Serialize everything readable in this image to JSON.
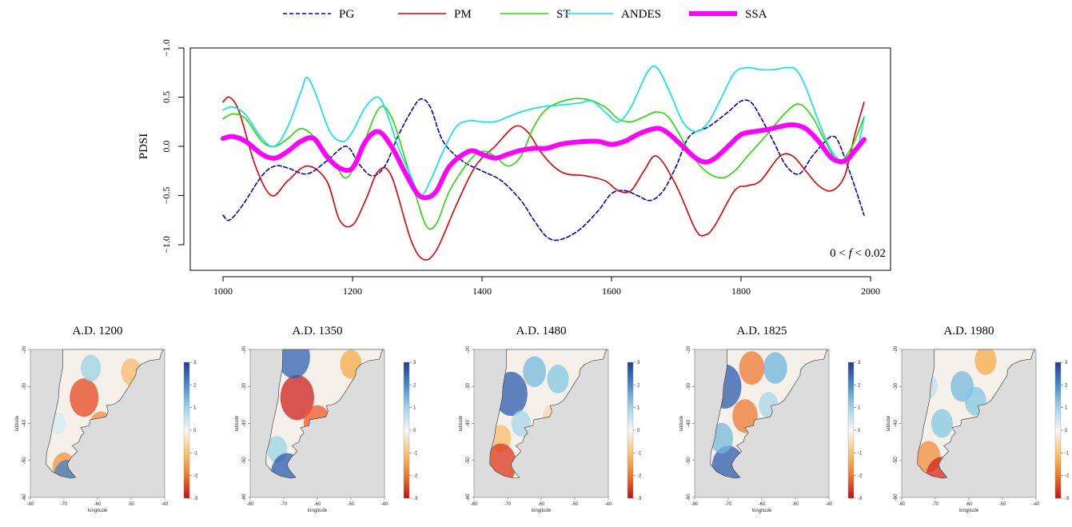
{
  "chart_data": [
    {
      "type": "line",
      "title": "",
      "xlabel": "",
      "ylabel": "PDSI",
      "xlim": [
        1000,
        2000
      ],
      "ylim": [
        -1.0,
        1.0
      ],
      "y_inverted": true,
      "x_ticks": [
        1000,
        1200,
        1400,
        1600,
        1800,
        2000
      ],
      "y_ticks": [
        -1.0,
        -0.5,
        0.0,
        0.5,
        1.0
      ],
      "y_tick_labels": [
        "0.5",
        "0.0",
        "−0.5",
        "−1.0"
      ],
      "y_top_label": "−1.0",
      "annotation": {
        "pre": "0 < ",
        "var": "f",
        "post": " < 0.02"
      },
      "legend": "top",
      "series": [
        {
          "name": "PG",
          "color": "#0000cc",
          "style": "dashed",
          "width": 1.6,
          "x": [
            1000,
            1010,
            1030,
            1060,
            1080,
            1100,
            1130,
            1160,
            1190,
            1210,
            1230,
            1250,
            1270,
            1290,
            1305,
            1320,
            1340,
            1370,
            1400,
            1430,
            1460,
            1480,
            1500,
            1520,
            1550,
            1580,
            1600,
            1620,
            1640,
            1660,
            1680,
            1700,
            1720,
            1750,
            1780,
            1800,
            1815,
            1830,
            1850,
            1870,
            1890,
            1910,
            1930,
            1940,
            1950,
            1970,
            1990
          ],
          "y": [
            0.7,
            0.75,
            0.6,
            0.3,
            0.2,
            0.22,
            0.28,
            0.15,
            0.0,
            0.18,
            0.3,
            0.2,
            -0.1,
            -0.35,
            -0.48,
            -0.4,
            -0.05,
            0.15,
            0.25,
            0.35,
            0.55,
            0.75,
            0.92,
            0.95,
            0.85,
            0.65,
            0.48,
            0.45,
            0.5,
            0.55,
            0.45,
            0.2,
            -0.1,
            -0.2,
            -0.35,
            -0.46,
            -0.45,
            -0.3,
            -0.05,
            0.2,
            0.28,
            0.1,
            -0.05,
            -0.1,
            -0.05,
            0.3,
            0.7
          ]
        },
        {
          "name": "PM",
          "color": "#e00000",
          "style": "solid",
          "width": 1.6,
          "x": [
            1000,
            1010,
            1025,
            1050,
            1075,
            1100,
            1130,
            1160,
            1180,
            1200,
            1220,
            1240,
            1260,
            1290,
            1310,
            1330,
            1360,
            1390,
            1420,
            1450,
            1470,
            1490,
            1510,
            1530,
            1560,
            1590,
            1610,
            1630,
            1650,
            1670,
            1700,
            1730,
            1745,
            1760,
            1790,
            1810,
            1830,
            1860,
            1880,
            1900,
            1920,
            1940,
            1960,
            1975,
            1990
          ],
          "y": [
            -0.45,
            -0.5,
            -0.35,
            0.2,
            0.5,
            0.35,
            0.2,
            0.35,
            0.75,
            0.8,
            0.55,
            0.25,
            0.3,
            0.95,
            1.15,
            1.05,
            0.6,
            0.2,
            0.0,
            -0.2,
            -0.15,
            0.05,
            0.2,
            0.28,
            0.3,
            0.35,
            0.45,
            0.45,
            0.25,
            0.1,
            0.4,
            0.85,
            0.9,
            0.8,
            0.45,
            0.4,
            0.35,
            0.1,
            0.1,
            0.25,
            0.4,
            0.45,
            0.3,
            -0.1,
            -0.45
          ]
        },
        {
          "name": "ST",
          "color": "#22dd00",
          "style": "solid",
          "width": 1.6,
          "x": [
            1000,
            1015,
            1035,
            1060,
            1080,
            1100,
            1120,
            1140,
            1170,
            1190,
            1210,
            1240,
            1260,
            1280,
            1300,
            1315,
            1330,
            1350,
            1380,
            1400,
            1420,
            1440,
            1460,
            1480,
            1500,
            1530,
            1560,
            1590,
            1610,
            1630,
            1650,
            1670,
            1690,
            1720,
            1745,
            1770,
            1790,
            1810,
            1840,
            1870,
            1890,
            1910,
            1930,
            1950,
            1970,
            1990
          ],
          "y": [
            -0.28,
            -0.33,
            -0.28,
            -0.05,
            0.0,
            -0.08,
            -0.18,
            -0.1,
            0.15,
            0.32,
            0.1,
            -0.38,
            -0.3,
            0.1,
            0.55,
            0.82,
            0.78,
            0.45,
            0.15,
            0.05,
            0.1,
            0.2,
            0.1,
            -0.2,
            -0.38,
            -0.47,
            -0.48,
            -0.4,
            -0.28,
            -0.25,
            -0.3,
            -0.35,
            -0.28,
            0.05,
            0.25,
            0.32,
            0.25,
            0.1,
            -0.12,
            -0.35,
            -0.43,
            -0.3,
            -0.05,
            0.15,
            0.02,
            -0.3
          ]
        },
        {
          "name": "ANDES",
          "color": "#00e5ee",
          "style": "solid",
          "width": 1.6,
          "x": [
            1000,
            1015,
            1035,
            1060,
            1080,
            1100,
            1120,
            1130,
            1145,
            1165,
            1185,
            1200,
            1220,
            1240,
            1255,
            1270,
            1290,
            1305,
            1320,
            1340,
            1360,
            1380,
            1400,
            1420,
            1440,
            1460,
            1490,
            1520,
            1550,
            1570,
            1590,
            1610,
            1630,
            1655,
            1670,
            1690,
            1710,
            1730,
            1750,
            1770,
            1790,
            1810,
            1830,
            1850,
            1870,
            1885,
            1900,
            1920,
            1940,
            1960,
            1980,
            1990
          ],
          "y": [
            -0.37,
            -0.4,
            -0.32,
            -0.08,
            0.0,
            -0.2,
            -0.55,
            -0.7,
            -0.5,
            -0.15,
            -0.05,
            -0.15,
            -0.4,
            -0.5,
            -0.3,
            0.0,
            0.3,
            0.5,
            0.35,
            0.05,
            -0.2,
            -0.26,
            -0.25,
            -0.25,
            -0.3,
            -0.35,
            -0.4,
            -0.42,
            -0.44,
            -0.46,
            -0.35,
            -0.25,
            -0.4,
            -0.75,
            -0.8,
            -0.55,
            -0.25,
            -0.15,
            -0.25,
            -0.5,
            -0.75,
            -0.8,
            -0.78,
            -0.78,
            -0.8,
            -0.78,
            -0.6,
            -0.25,
            0.05,
            0.15,
            0.0,
            -0.3
          ]
        },
        {
          "name": "SSA",
          "color": "#ff00ff",
          "style": "solid",
          "width": 6,
          "x": [
            1000,
            1015,
            1035,
            1060,
            1080,
            1100,
            1120,
            1140,
            1160,
            1180,
            1200,
            1220,
            1240,
            1260,
            1280,
            1300,
            1315,
            1330,
            1350,
            1380,
            1400,
            1420,
            1440,
            1460,
            1480,
            1500,
            1520,
            1540,
            1560,
            1580,
            1600,
            1620,
            1640,
            1660,
            1675,
            1690,
            1710,
            1730,
            1745,
            1760,
            1780,
            1800,
            1820,
            1840,
            1860,
            1880,
            1900,
            1920,
            1940,
            1960,
            1975,
            1990
          ],
          "y": [
            -0.08,
            -0.1,
            -0.05,
            0.08,
            0.12,
            0.05,
            -0.05,
            -0.08,
            0.1,
            0.22,
            0.22,
            -0.05,
            -0.15,
            0.0,
            0.25,
            0.48,
            0.52,
            0.45,
            0.2,
            0.05,
            0.08,
            0.12,
            0.08,
            0.04,
            0.02,
            0.02,
            -0.02,
            -0.04,
            -0.05,
            -0.05,
            -0.02,
            -0.05,
            -0.12,
            -0.17,
            -0.18,
            -0.12,
            0.0,
            0.12,
            0.16,
            0.12,
            0.0,
            -0.12,
            -0.15,
            -0.17,
            -0.2,
            -0.22,
            -0.18,
            -0.05,
            0.12,
            0.15,
            0.05,
            -0.07
          ]
        }
      ]
    },
    {
      "type": "heatmap",
      "title": "A.D. 1200",
      "xlabel": "longitude",
      "ylabel": "latitude",
      "x_ticks": [
        -80,
        -70,
        -60,
        -50,
        -40
      ],
      "y_ticks": [
        -20,
        -30,
        -40,
        -50,
        -60
      ],
      "colorbar": {
        "min": -3,
        "max": 3,
        "ticks": [
          3,
          2,
          1,
          0,
          -1,
          -2,
          -3
        ]
      },
      "anomalies": [
        {
          "lon": -64,
          "lat": -33,
          "value": -2.0
        },
        {
          "lon": -59,
          "lat": -41,
          "value": -1.3
        },
        {
          "lon": -62,
          "lat": -25,
          "value": 0.8
        },
        {
          "lon": -50,
          "lat": -26,
          "value": -0.8
        },
        {
          "lon": -70,
          "lat": -52,
          "value": -1.2
        },
        {
          "lon": -69,
          "lat": -55,
          "value": 2.0
        },
        {
          "lon": -72,
          "lat": -40,
          "value": 0.3
        }
      ]
    },
    {
      "type": "heatmap",
      "title": "A.D. 1350",
      "xlabel": "longitude",
      "ylabel": "latitude",
      "x_ticks": [
        -80,
        -70,
        -60,
        -50,
        -40
      ],
      "y_ticks": [
        -20,
        -30,
        -40,
        -50,
        -60
      ],
      "colorbar": {
        "min": -3,
        "max": 3,
        "ticks": [
          3,
          2,
          1,
          0,
          -1,
          -2,
          -3
        ]
      },
      "anomalies": [
        {
          "lon": -66,
          "lat": -33,
          "value": -2.7
        },
        {
          "lon": -60,
          "lat": -40,
          "value": -1.8
        },
        {
          "lon": -67,
          "lat": -22,
          "value": 2.5
        },
        {
          "lon": -50,
          "lat": -24,
          "value": -1.0
        },
        {
          "lon": -72,
          "lat": -47,
          "value": 0.8
        },
        {
          "lon": -69,
          "lat": -54,
          "value": 2.6
        },
        {
          "lon": -64,
          "lat": -48,
          "value": -0.5
        }
      ]
    },
    {
      "type": "heatmap",
      "title": "A.D. 1480",
      "xlabel": "longitude",
      "ylabel": "latitude",
      "x_ticks": [
        -80,
        -70,
        -60,
        -50,
        -40
      ],
      "y_ticks": [
        -20,
        -30,
        -40,
        -50,
        -60
      ],
      "colorbar": {
        "min": -3,
        "max": 3,
        "ticks": [
          3,
          2,
          1,
          0,
          -1,
          -2,
          -3
        ]
      },
      "anomalies": [
        {
          "lon": -69,
          "lat": -32,
          "value": 2.6
        },
        {
          "lon": -62,
          "lat": -26,
          "value": 1.2
        },
        {
          "lon": -55,
          "lat": -28,
          "value": 1.0
        },
        {
          "lon": -72,
          "lat": -44,
          "value": -0.8
        },
        {
          "lon": -72,
          "lat": -51,
          "value": -2.3
        },
        {
          "lon": -66,
          "lat": -40,
          "value": 0.7
        },
        {
          "lon": -57,
          "lat": -38,
          "value": -0.4
        }
      ]
    },
    {
      "type": "heatmap",
      "title": "A.D. 1825",
      "xlabel": "longitude",
      "ylabel": "latitude",
      "x_ticks": [
        -80,
        -70,
        -60,
        -50,
        -40
      ],
      "y_ticks": [
        -20,
        -30,
        -40,
        -50,
        -60
      ],
      "colorbar": {
        "min": -3,
        "max": 3,
        "ticks": [
          3,
          2,
          1,
          0,
          -1,
          -2,
          -3
        ]
      },
      "anomalies": [
        {
          "lon": -71,
          "lat": -30,
          "value": 2.6
        },
        {
          "lon": -63,
          "lat": -25,
          "value": -1.5
        },
        {
          "lon": -65,
          "lat": -38,
          "value": -1.5
        },
        {
          "lon": -56,
          "lat": -25,
          "value": 1.3
        },
        {
          "lon": -70,
          "lat": -52,
          "value": 2.6
        },
        {
          "lon": -58,
          "lat": -35,
          "value": 0.7
        },
        {
          "lon": -72,
          "lat": -44,
          "value": 1.2
        }
      ]
    },
    {
      "type": "heatmap",
      "title": "A.D. 1980",
      "xlabel": "longitude",
      "ylabel": "latitude",
      "x_ticks": [
        -80,
        -70,
        -60,
        -50,
        -40
      ],
      "y_ticks": [
        -20,
        -30,
        -40,
        -50,
        -60
      ],
      "colorbar": {
        "min": -3,
        "max": 3,
        "ticks": [
          3,
          2,
          1,
          0,
          -1,
          -2,
          -3
        ]
      },
      "anomalies": [
        {
          "lon": -62,
          "lat": -30,
          "value": 1.2
        },
        {
          "lon": -55,
          "lat": -23,
          "value": -1.0
        },
        {
          "lon": -68,
          "lat": -40,
          "value": 1.0
        },
        {
          "lon": -72,
          "lat": -49,
          "value": -1.3
        },
        {
          "lon": -68,
          "lat": -55,
          "value": -2.6
        },
        {
          "lon": -58,
          "lat": -34,
          "value": 1.0
        },
        {
          "lon": -72,
          "lat": -30,
          "value": 0.5
        }
      ]
    }
  ]
}
